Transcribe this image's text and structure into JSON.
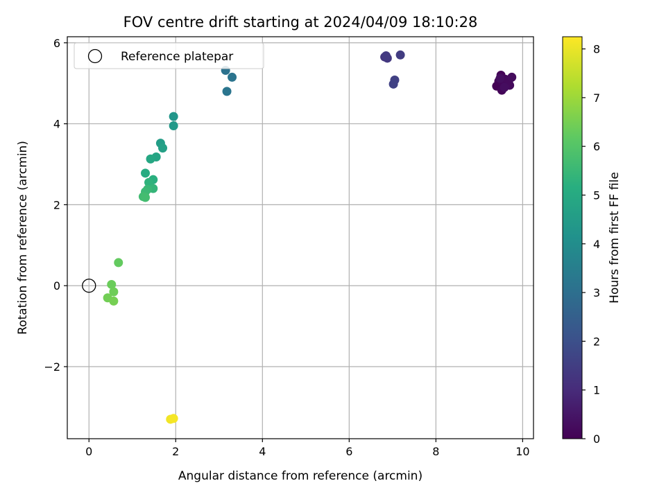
{
  "chart_data": {
    "type": "scatter",
    "title": "FOV centre drift starting at 2024/04/09 18:10:28",
    "xlabel": "Angular distance from reference (arcmin)",
    "ylabel": "Rotation from reference (arcmin)",
    "xlim": [
      -0.5,
      10.25
    ],
    "ylim": [
      -3.78,
      6.15
    ],
    "xticks": [
      0,
      2,
      4,
      6,
      8,
      10
    ],
    "yticks": [
      -2,
      0,
      2,
      4,
      6
    ],
    "xtick_labels": [
      "0",
      "2",
      "4",
      "6",
      "8",
      "10"
    ],
    "ytick_labels": [
      "−2",
      "0",
      "2",
      "4",
      "6"
    ],
    "grid": true,
    "legend": {
      "placement": "top-left",
      "entries": [
        "Reference platepar"
      ]
    },
    "reference_point": {
      "x": 0,
      "y": 0,
      "marker": "open-circle"
    },
    "colorbar": {
      "label": "Hours from first FF file",
      "colormap": "viridis",
      "range": [
        0,
        8.25
      ],
      "ticks": [
        0,
        1,
        2,
        3,
        4,
        5,
        6,
        7,
        8
      ],
      "tick_labels": [
        "0",
        "1",
        "2",
        "3",
        "4",
        "5",
        "6",
        "7",
        "8"
      ]
    },
    "points": [
      {
        "x": 9.4,
        "y": 4.93,
        "h": 0.02
      },
      {
        "x": 9.45,
        "y": 5.05,
        "h": 0.05
      },
      {
        "x": 9.5,
        "y": 5.2,
        "h": 0.08
      },
      {
        "x": 9.52,
        "y": 4.83,
        "h": 0.1
      },
      {
        "x": 9.55,
        "y": 5.0,
        "h": 0.12
      },
      {
        "x": 9.6,
        "y": 5.1,
        "h": 0.15
      },
      {
        "x": 9.62,
        "y": 4.98,
        "h": 0.18
      },
      {
        "x": 9.68,
        "y": 5.07,
        "h": 0.2
      },
      {
        "x": 9.7,
        "y": 4.95,
        "h": 0.22
      },
      {
        "x": 9.75,
        "y": 5.15,
        "h": 0.25
      },
      {
        "x": 9.58,
        "y": 4.9,
        "h": 0.28
      },
      {
        "x": 9.48,
        "y": 5.12,
        "h": 0.3
      },
      {
        "x": 6.82,
        "y": 5.65,
        "h": 1.3
      },
      {
        "x": 6.88,
        "y": 5.62,
        "h": 1.35
      },
      {
        "x": 6.85,
        "y": 5.68,
        "h": 1.4
      },
      {
        "x": 7.18,
        "y": 5.7,
        "h": 1.45
      },
      {
        "x": 7.05,
        "y": 5.08,
        "h": 1.55
      },
      {
        "x": 7.02,
        "y": 4.98,
        "h": 1.6
      },
      {
        "x": 3.15,
        "y": 5.32,
        "h": 3.1
      },
      {
        "x": 3.3,
        "y": 5.15,
        "h": 3.15
      },
      {
        "x": 3.18,
        "y": 4.8,
        "h": 3.2
      },
      {
        "x": 1.95,
        "y": 4.18,
        "h": 4.3
      },
      {
        "x": 1.95,
        "y": 3.95,
        "h": 4.4
      },
      {
        "x": 1.65,
        "y": 3.52,
        "h": 4.55
      },
      {
        "x": 1.7,
        "y": 3.4,
        "h": 4.65
      },
      {
        "x": 1.55,
        "y": 3.18,
        "h": 4.8
      },
      {
        "x": 1.42,
        "y": 3.13,
        "h": 4.9
      },
      {
        "x": 1.3,
        "y": 2.78,
        "h": 5.05
      },
      {
        "x": 1.48,
        "y": 2.62,
        "h": 5.2
      },
      {
        "x": 1.38,
        "y": 2.55,
        "h": 5.3
      },
      {
        "x": 1.48,
        "y": 2.4,
        "h": 5.4
      },
      {
        "x": 1.35,
        "y": 2.38,
        "h": 5.5
      },
      {
        "x": 1.3,
        "y": 2.32,
        "h": 5.55
      },
      {
        "x": 1.25,
        "y": 2.2,
        "h": 5.65
      },
      {
        "x": 1.3,
        "y": 2.18,
        "h": 5.7
      },
      {
        "x": 0.68,
        "y": 0.57,
        "h": 6.25
      },
      {
        "x": 0.52,
        "y": 0.03,
        "h": 6.35
      },
      {
        "x": 0.57,
        "y": -0.15,
        "h": 6.4
      },
      {
        "x": 0.43,
        "y": -0.3,
        "h": 6.45
      },
      {
        "x": 0.57,
        "y": -0.38,
        "h": 6.5
      },
      {
        "x": 1.88,
        "y": -3.3,
        "h": 8.1
      },
      {
        "x": 1.95,
        "y": -3.28,
        "h": 8.15
      }
    ]
  }
}
